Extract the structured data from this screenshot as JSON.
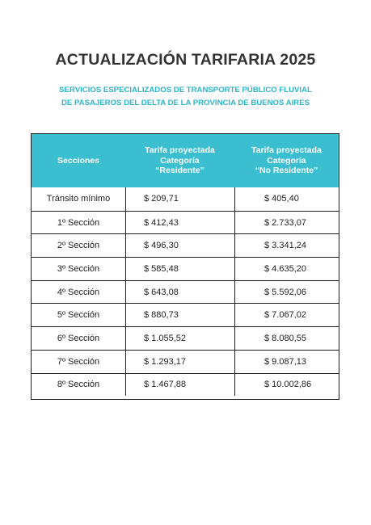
{
  "title": "ACTUALIZACIÓN TARIFARIA 2025",
  "subtitle": {
    "line1": "SERVICIOS ESPECIALIZADOS DE TRANSPORTE PÚBLICO FLUVIAL",
    "line2": "DE PASAJEROS DEL DELTA DE LA PROVINCIA DE BUENOS AIRES"
  },
  "colors": {
    "header_bg": "#3bbfd0",
    "subtitle": "#2bb5c9",
    "title": "#333333"
  },
  "table": {
    "headers": {
      "col1": "Secciones",
      "col2": [
        "Tarifa proyectada",
        "Categoría",
        "“Residente”"
      ],
      "col3": [
        "Tarifa proyectada",
        "Categoría",
        "“No Residente”"
      ]
    },
    "rows": [
      {
        "seccion": "Tránsito mínimo",
        "residente": "$ 209,71",
        "no_residente": "$ 405,40"
      },
      {
        "seccion": "1º Sección",
        "residente": "$ 412,43",
        "no_residente": "$ 2.733,07"
      },
      {
        "seccion": "2º Sección",
        "residente": "$ 496,30",
        "no_residente": "$ 3.341,24"
      },
      {
        "seccion": "3º Sección",
        "residente": "$ 585,48",
        "no_residente": "$ 4.635,20"
      },
      {
        "seccion": "4º Sección",
        "residente": "$ 643,08",
        "no_residente": "$ 5.592,06"
      },
      {
        "seccion": "5º Sección",
        "residente": "$ 880,73",
        "no_residente": "$ 7.067,02"
      },
      {
        "seccion": "6º Sección",
        "residente": "$ 1.055,52",
        "no_residente": "$ 8.080,55"
      },
      {
        "seccion": "7º Sección",
        "residente": "$ 1.293,17",
        "no_residente": "$ 9.087,13"
      },
      {
        "seccion": "8º Sección",
        "residente": "$ 1.467,88",
        "no_residente": "$ 10.002,86"
      }
    ]
  }
}
